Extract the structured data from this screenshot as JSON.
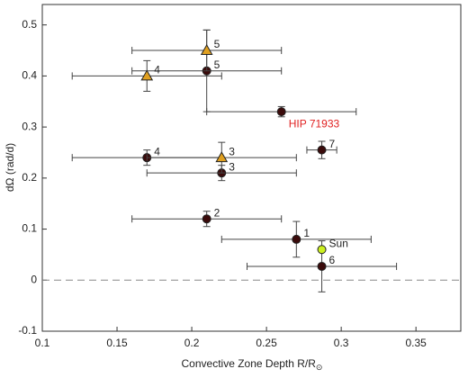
{
  "chart_data": {
    "type": "scatter",
    "xlabel": "Convective Zone Depth R/R",
    "xlabel_subscript": "⊙",
    "ylabel": "dΩ (rad/d)",
    "xlim": [
      0.1,
      0.38
    ],
    "ylim": [
      -0.1,
      0.54
    ],
    "xticks": [
      0.1,
      0.15,
      0.2,
      0.25,
      0.3,
      0.35
    ],
    "yticks": [
      -0.1,
      0,
      0.1,
      0.2,
      0.3,
      0.4,
      0.5
    ],
    "reference_line": 0,
    "series": [
      {
        "marker": "circle",
        "color": "#3b0b0b",
        "x": [
          0.21,
          0.26,
          0.17,
          0.22,
          0.287,
          0.21,
          0.27,
          0.287
        ],
        "y": [
          0.41,
          0.33,
          0.24,
          0.21,
          0.255,
          0.12,
          0.08,
          0.027
        ],
        "xerr": [
          0.05,
          0.05,
          0.05,
          0.05,
          0.01,
          0.05,
          0.05,
          0.05
        ],
        "yerr": [
          0.08,
          0.01,
          0.015,
          0.015,
          0.017,
          0.015,
          0.035,
          0.05
        ],
        "labels": [
          "5",
          "HIP 71933",
          "4",
          "3",
          "7",
          "2",
          "1",
          "6"
        ],
        "label_colors": [
          null,
          "#e02020",
          null,
          null,
          null,
          null,
          null,
          null
        ]
      },
      {
        "marker": "triangle",
        "color": "#e0a020",
        "x": [
          0.17,
          0.21,
          0.22
        ],
        "y": [
          0.4,
          0.45,
          0.24
        ],
        "xerr": [
          0.05,
          0.05,
          0.05
        ],
        "yerr": [
          0.03,
          0.04,
          0.03
        ],
        "labels": [
          "4",
          "5",
          "3"
        ]
      },
      {
        "marker": "circle",
        "color": "#ccf020",
        "x": [
          0.287
        ],
        "y": [
          0.06
        ],
        "labels": [
          "Sun"
        ]
      }
    ]
  }
}
